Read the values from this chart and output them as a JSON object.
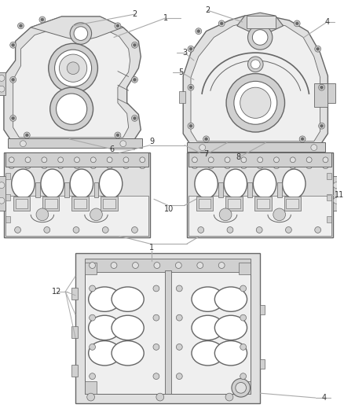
{
  "bg_color": "#ffffff",
  "lc": "#666666",
  "lc_light": "#999999",
  "fc_part": "#efefef",
  "fc_mid": "#e0e0e0",
  "fc_dark": "#d0d0d0",
  "callout_lc": "#aaaaaa",
  "callout_tc": "#333333",
  "figsize": [
    4.38,
    5.33
  ],
  "dpi": 100
}
